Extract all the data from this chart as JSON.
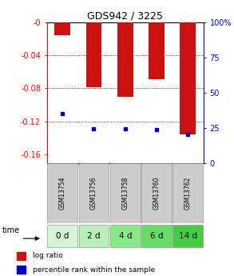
{
  "title": "GDS942 / 3225",
  "samples": [
    "GSM13754",
    "GSM13756",
    "GSM13758",
    "GSM13760",
    "GSM13762"
  ],
  "time_labels": [
    "0 d",
    "2 d",
    "4 d",
    "6 d",
    "14 d"
  ],
  "log_ratios": [
    -0.016,
    -0.079,
    -0.09,
    -0.069,
    -0.136
  ],
  "percentile_ranks": [
    35,
    24,
    24,
    23.5,
    20
  ],
  "ylim_left": [
    -0.17,
    0.0
  ],
  "ylim_right": [
    0,
    100
  ],
  "left_yticks": [
    0.0,
    -0.04,
    -0.08,
    -0.12,
    -0.16
  ],
  "right_yticks": [
    0,
    25,
    50,
    75,
    100
  ],
  "bar_color": "#cc1111",
  "dot_color": "#0000cc",
  "sample_bg": "#cccccc",
  "time_bg_colors": [
    "#d4f7d4",
    "#b8f0b8",
    "#88e888",
    "#66dd66",
    "#44cc44"
  ],
  "bar_width": 0.5
}
